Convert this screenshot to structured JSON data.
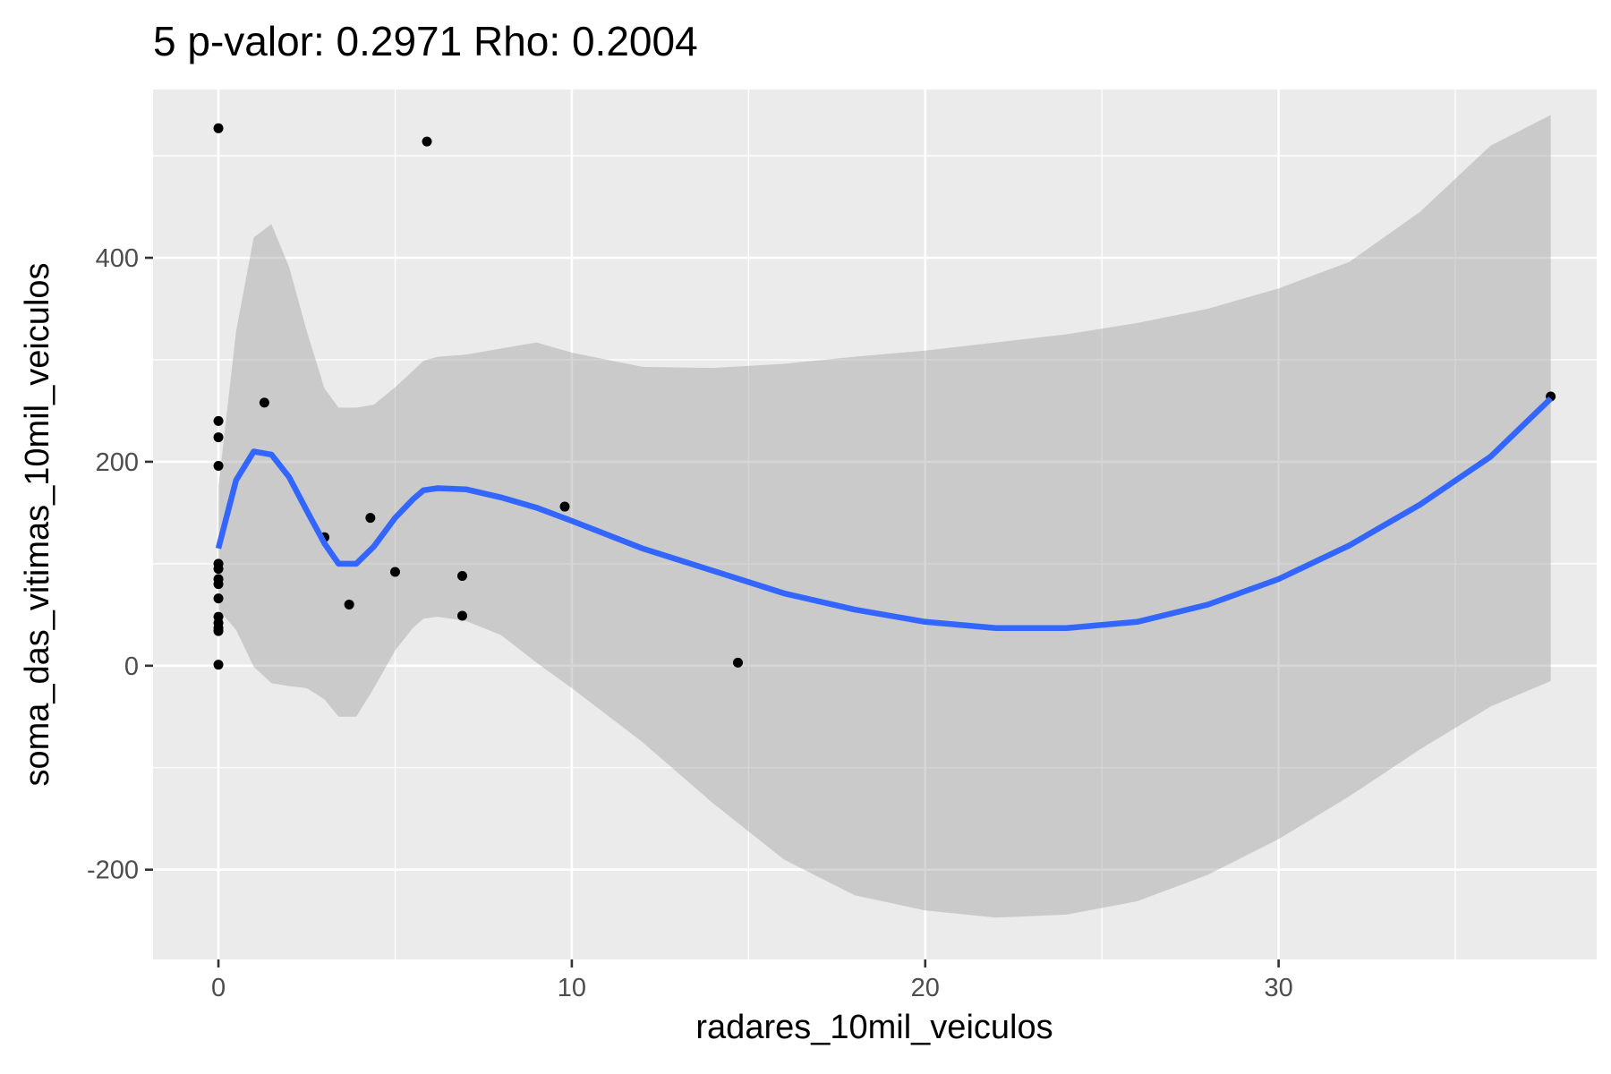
{
  "chart_data": {
    "type": "scatter",
    "title": "5 p-valor: 0.2971 Rho: 0.2004",
    "xlabel": "radares_10mil_veiculos",
    "ylabel": "soma_das_vitimas_10mil_veiculos",
    "xlim": [
      -1.85,
      39.0
    ],
    "ylim": [
      -288,
      565
    ],
    "x_ticks": [
      0,
      10,
      20,
      30
    ],
    "y_ticks": [
      -200,
      0,
      200,
      400
    ],
    "x_tick_labels": [
      "0",
      "10",
      "20",
      "30"
    ],
    "y_tick_labels": [
      "-200",
      "0",
      "200",
      "400"
    ],
    "grid": true,
    "colors": {
      "panel_background": "#ebebeb",
      "grid": "#ffffff",
      "point": "#000000",
      "smooth_line": "#3366ff",
      "ribbon": "#999999"
    },
    "points": [
      {
        "x": 0,
        "y": 527
      },
      {
        "x": 0,
        "y": 240
      },
      {
        "x": 0,
        "y": 224
      },
      {
        "x": 0,
        "y": 196
      },
      {
        "x": 0,
        "y": 100
      },
      {
        "x": 0,
        "y": 95
      },
      {
        "x": 0,
        "y": 85
      },
      {
        "x": 0,
        "y": 80
      },
      {
        "x": 0,
        "y": 66
      },
      {
        "x": 0,
        "y": 48
      },
      {
        "x": 0,
        "y": 42
      },
      {
        "x": 0,
        "y": 37
      },
      {
        "x": 0,
        "y": 34
      },
      {
        "x": 0,
        "y": 1
      },
      {
        "x": 1.3,
        "y": 258
      },
      {
        "x": 3.0,
        "y": 126
      },
      {
        "x": 3.7,
        "y": 60
      },
      {
        "x": 4.3,
        "y": 145
      },
      {
        "x": 5.0,
        "y": 92
      },
      {
        "x": 5.9,
        "y": 514
      },
      {
        "x": 6.9,
        "y": 88
      },
      {
        "x": 6.9,
        "y": 49
      },
      {
        "x": 9.8,
        "y": 156
      },
      {
        "x": 14.7,
        "y": 3
      },
      {
        "x": 37.7,
        "y": 264
      }
    ],
    "smooth": {
      "x": [
        0,
        0.5,
        1.0,
        1.5,
        2.0,
        2.5,
        3.0,
        3.4,
        3.9,
        4.4,
        5.0,
        5.5,
        5.8,
        6.2,
        7.0,
        8.0,
        9.0,
        10.0,
        12.0,
        14.0,
        16.0,
        18.0,
        20.0,
        22.0,
        24.0,
        26.0,
        28.0,
        30.0,
        32.0,
        34.0,
        36.0,
        37.7
      ],
      "y": [
        115,
        182,
        210,
        207,
        185,
        152,
        120,
        100,
        100,
        117,
        145,
        163,
        172,
        174,
        173,
        165,
        155,
        142,
        115,
        93,
        71,
        55,
        43,
        37,
        37,
        43,
        60,
        85,
        118,
        158,
        205,
        262
      ],
      "lower": [
        55,
        35,
        -1,
        -17,
        -20,
        -22,
        -33,
        -50,
        -50,
        -22,
        15,
        37,
        46,
        48,
        44,
        30,
        3,
        -22,
        -75,
        -135,
        -190,
        -225,
        -240,
        -247,
        -244,
        -231,
        -205,
        -170,
        -128,
        -82,
        -40,
        -15
      ],
      "upper": [
        175,
        328,
        420,
        433,
        391,
        328,
        272,
        253,
        253,
        256,
        273,
        289,
        299,
        303,
        305,
        311,
        317,
        307,
        293,
        292,
        296,
        303,
        309,
        317,
        325,
        336,
        350,
        370,
        396,
        445,
        510,
        540
      ]
    }
  }
}
